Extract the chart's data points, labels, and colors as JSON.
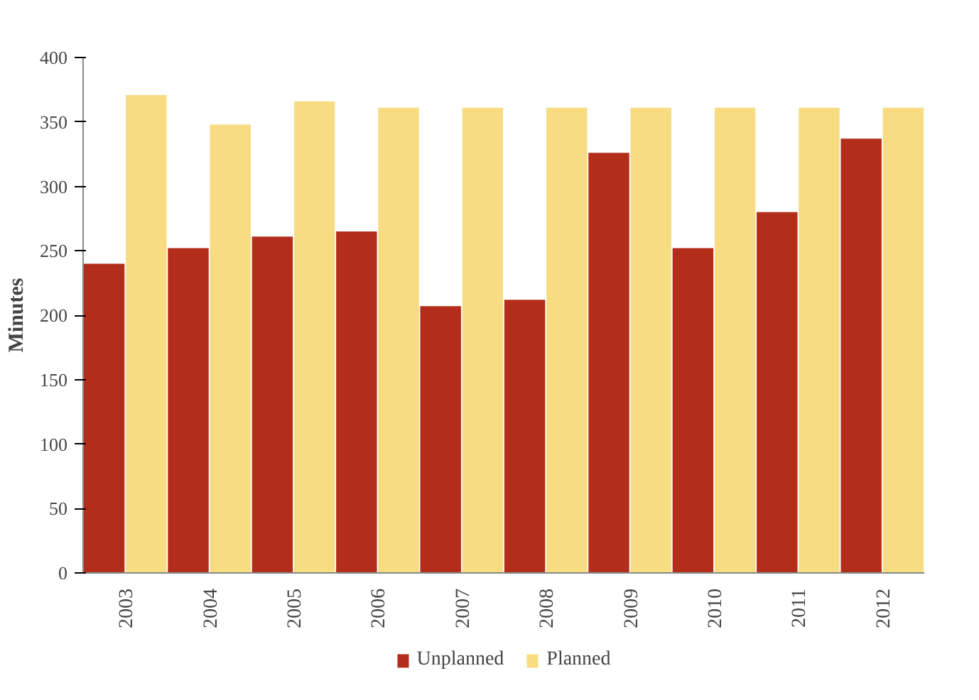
{
  "chart_data": {
    "type": "bar",
    "ylabel": "Minutes",
    "categories": [
      "2003",
      "2004",
      "2005",
      "2006",
      "2007",
      "2008",
      "2009",
      "2010",
      "2011",
      "2012"
    ],
    "series": [
      {
        "name": "Unplanned",
        "color": "#b22d1a",
        "values": [
          240,
          252,
          261,
          265,
          207,
          212,
          326,
          252,
          280,
          337
        ]
      },
      {
        "name": "Planned",
        "color": "#f7dc82",
        "values": [
          371,
          348,
          366,
          361,
          361,
          361,
          361,
          361,
          361,
          361
        ]
      }
    ],
    "ylim": [
      0,
      400
    ],
    "yticks": [
      0,
      50,
      100,
      150,
      200,
      250,
      300,
      350,
      400
    ],
    "grid": false,
    "legend": "bottom"
  }
}
